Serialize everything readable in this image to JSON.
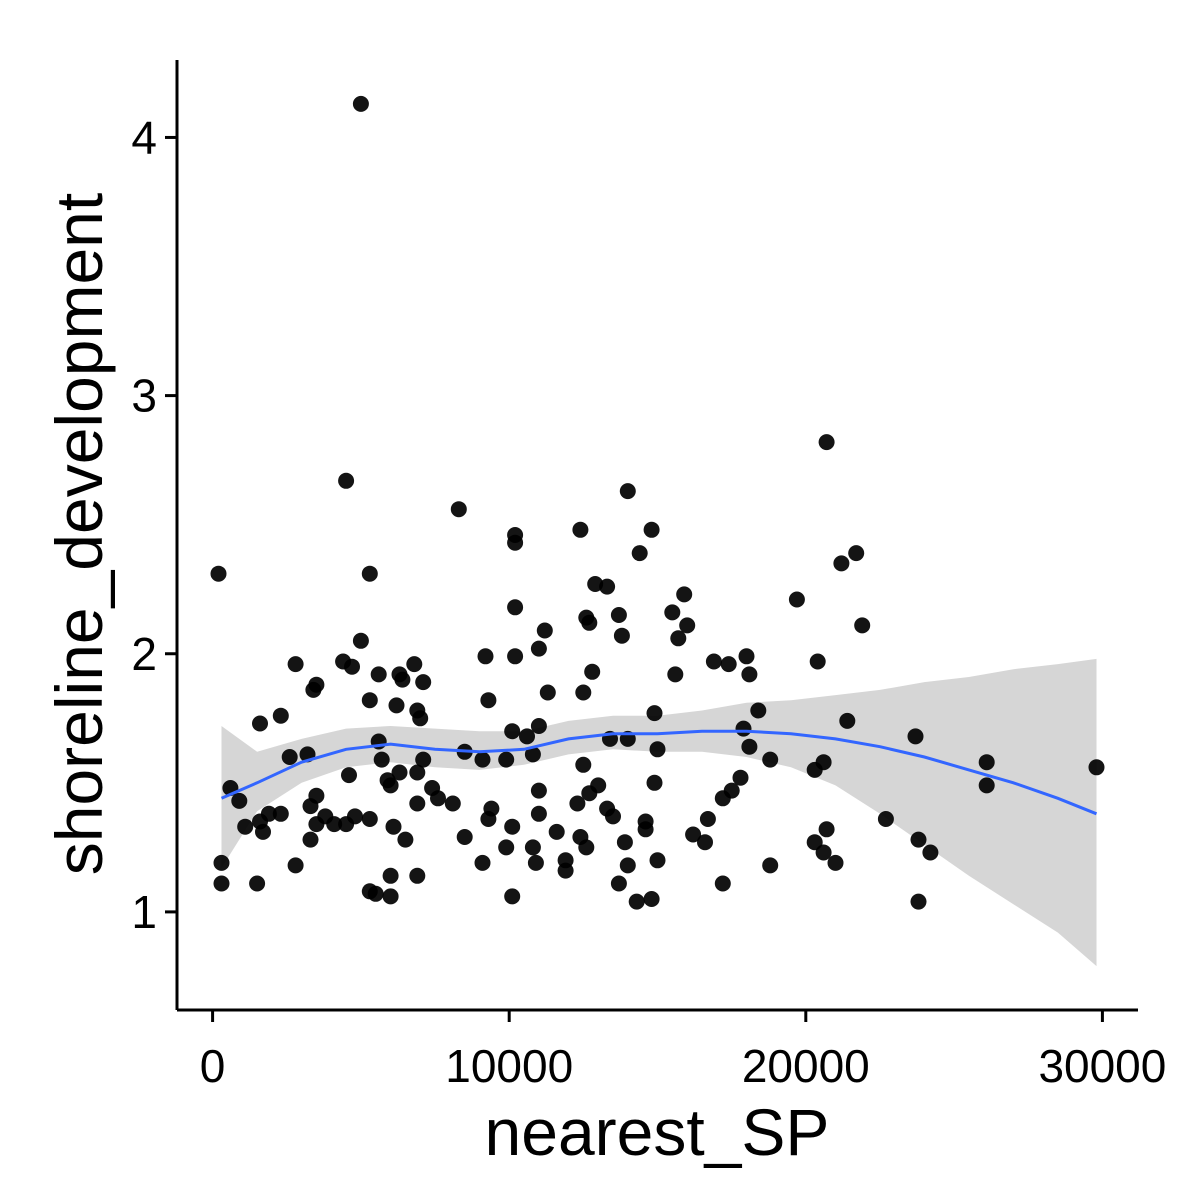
{
  "chart_data": {
    "type": "scatter",
    "xlabel": "nearest_SP",
    "ylabel": "shoreline_development",
    "xlim": [
      -1200,
      31200
    ],
    "ylim": [
      0.62,
      4.3
    ],
    "x_ticks": [
      0,
      10000,
      20000,
      30000
    ],
    "x_tick_labels": [
      "0",
      "10000",
      "20000",
      "30000"
    ],
    "y_ticks": [
      1,
      2,
      3,
      4
    ],
    "y_tick_labels": [
      "1",
      "2",
      "3",
      "4"
    ],
    "grid": false,
    "legend": "none",
    "point_color": "#000000",
    "smooth_color": "#3366FF",
    "band_color": "#d6d6d6",
    "points": [
      [
        5000,
        4.13
      ],
      [
        4500,
        2.67
      ],
      [
        20700,
        2.82
      ],
      [
        14000,
        2.63
      ],
      [
        8300,
        2.56
      ],
      [
        12400,
        2.48
      ],
      [
        14800,
        2.48
      ],
      [
        10200,
        2.46
      ],
      [
        10200,
        2.43
      ],
      [
        14400,
        2.39
      ],
      [
        21700,
        2.39
      ],
      [
        21200,
        2.35
      ],
      [
        200,
        2.31
      ],
      [
        5300,
        2.31
      ],
      [
        12900,
        2.27
      ],
      [
        13300,
        2.26
      ],
      [
        15900,
        2.23
      ],
      [
        19700,
        2.21
      ],
      [
        10200,
        2.18
      ],
      [
        15500,
        2.16
      ],
      [
        13700,
        2.15
      ],
      [
        12600,
        2.14
      ],
      [
        12700,
        2.12
      ],
      [
        16000,
        2.11
      ],
      [
        21900,
        2.11
      ],
      [
        11200,
        2.09
      ],
      [
        13800,
        2.07
      ],
      [
        15700,
        2.06
      ],
      [
        5000,
        2.05
      ],
      [
        11000,
        2.02
      ],
      [
        10200,
        1.99
      ],
      [
        9200,
        1.99
      ],
      [
        18000,
        1.99
      ],
      [
        4400,
        1.97
      ],
      [
        4700,
        1.95
      ],
      [
        20400,
        1.97
      ],
      [
        2800,
        1.96
      ],
      [
        6800,
        1.96
      ],
      [
        16900,
        1.97
      ],
      [
        17400,
        1.96
      ],
      [
        6300,
        1.92
      ],
      [
        5600,
        1.92
      ],
      [
        12800,
        1.93
      ],
      [
        15600,
        1.92
      ],
      [
        18100,
        1.92
      ],
      [
        6400,
        1.9
      ],
      [
        7100,
        1.89
      ],
      [
        3500,
        1.88
      ],
      [
        3400,
        1.86
      ],
      [
        11300,
        1.85
      ],
      [
        12500,
        1.85
      ],
      [
        5300,
        1.82
      ],
      [
        9300,
        1.82
      ],
      [
        6200,
        1.8
      ],
      [
        6900,
        1.78
      ],
      [
        14900,
        1.77
      ],
      [
        18400,
        1.78
      ],
      [
        2300,
        1.76
      ],
      [
        7000,
        1.75
      ],
      [
        1600,
        1.73
      ],
      [
        21400,
        1.74
      ],
      [
        10100,
        1.7
      ],
      [
        11000,
        1.72
      ],
      [
        17900,
        1.71
      ],
      [
        10600,
        1.68
      ],
      [
        23700,
        1.68
      ],
      [
        13400,
        1.67
      ],
      [
        14000,
        1.67
      ],
      [
        5600,
        1.66
      ],
      [
        3200,
        1.61
      ],
      [
        2600,
        1.6
      ],
      [
        8500,
        1.62
      ],
      [
        10800,
        1.61
      ],
      [
        15000,
        1.63
      ],
      [
        18100,
        1.64
      ],
      [
        9100,
        1.59
      ],
      [
        9900,
        1.59
      ],
      [
        12500,
        1.57
      ],
      [
        18800,
        1.59
      ],
      [
        20600,
        1.58
      ],
      [
        5700,
        1.59
      ],
      [
        7100,
        1.59
      ],
      [
        20300,
        1.55
      ],
      [
        26100,
        1.58
      ],
      [
        29800,
        1.56
      ],
      [
        6300,
        1.54
      ],
      [
        6900,
        1.54
      ],
      [
        5900,
        1.51
      ],
      [
        4600,
        1.53
      ],
      [
        14900,
        1.5
      ],
      [
        17800,
        1.52
      ],
      [
        13000,
        1.49
      ],
      [
        26100,
        1.49
      ],
      [
        600,
        1.48
      ],
      [
        6000,
        1.49
      ],
      [
        7400,
        1.48
      ],
      [
        11000,
        1.47
      ],
      [
        17500,
        1.47
      ],
      [
        12700,
        1.46
      ],
      [
        3500,
        1.45
      ],
      [
        7600,
        1.44
      ],
      [
        17200,
        1.44
      ],
      [
        900,
        1.43
      ],
      [
        12300,
        1.42
      ],
      [
        6900,
        1.42
      ],
      [
        3300,
        1.41
      ],
      [
        8100,
        1.42
      ],
      [
        9400,
        1.4
      ],
      [
        13300,
        1.4
      ],
      [
        1900,
        1.38
      ],
      [
        2300,
        1.38
      ],
      [
        11000,
        1.38
      ],
      [
        13500,
        1.37
      ],
      [
        3800,
        1.37
      ],
      [
        4800,
        1.37
      ],
      [
        5300,
        1.36
      ],
      [
        9300,
        1.36
      ],
      [
        16700,
        1.36
      ],
      [
        22700,
        1.36
      ],
      [
        1600,
        1.35
      ],
      [
        3500,
        1.34
      ],
      [
        4100,
        1.34
      ],
      [
        4500,
        1.34
      ],
      [
        14600,
        1.35
      ],
      [
        6100,
        1.33
      ],
      [
        1100,
        1.33
      ],
      [
        10100,
        1.33
      ],
      [
        14600,
        1.32
      ],
      [
        20700,
        1.32
      ],
      [
        1700,
        1.31
      ],
      [
        11600,
        1.31
      ],
      [
        16200,
        1.3
      ],
      [
        8500,
        1.29
      ],
      [
        12400,
        1.29
      ],
      [
        3300,
        1.28
      ],
      [
        6500,
        1.28
      ],
      [
        13900,
        1.27
      ],
      [
        16600,
        1.27
      ],
      [
        20300,
        1.27
      ],
      [
        23800,
        1.28
      ],
      [
        9900,
        1.25
      ],
      [
        10800,
        1.25
      ],
      [
        12600,
        1.25
      ],
      [
        20600,
        1.23
      ],
      [
        24200,
        1.23
      ],
      [
        300,
        1.19
      ],
      [
        9100,
        1.19
      ],
      [
        15000,
        1.2
      ],
      [
        21000,
        1.19
      ],
      [
        2800,
        1.18
      ],
      [
        10900,
        1.19
      ],
      [
        11900,
        1.2
      ],
      [
        14000,
        1.18
      ],
      [
        18800,
        1.18
      ],
      [
        11900,
        1.16
      ],
      [
        6000,
        1.14
      ],
      [
        6900,
        1.14
      ],
      [
        300,
        1.11
      ],
      [
        1500,
        1.11
      ],
      [
        13700,
        1.11
      ],
      [
        17200,
        1.11
      ],
      [
        5300,
        1.08
      ],
      [
        5500,
        1.07
      ],
      [
        6000,
        1.06
      ],
      [
        10100,
        1.06
      ],
      [
        14800,
        1.05
      ],
      [
        14300,
        1.04
      ],
      [
        23800,
        1.04
      ]
    ],
    "smooth_x": [
      300,
      1500,
      3000,
      4500,
      6000,
      7500,
      9000,
      10500,
      12000,
      13500,
      15000,
      16500,
      18000,
      19500,
      21000,
      22500,
      24000,
      25500,
      27000,
      28500,
      29800
    ],
    "smooth_y": [
      1.44,
      1.5,
      1.58,
      1.63,
      1.65,
      1.63,
      1.62,
      1.63,
      1.67,
      1.69,
      1.69,
      1.7,
      1.7,
      1.69,
      1.67,
      1.64,
      1.6,
      1.55,
      1.5,
      1.44,
      1.38
    ],
    "band_lower": [
      1.17,
      1.39,
      1.5,
      1.56,
      1.58,
      1.56,
      1.55,
      1.57,
      1.61,
      1.63,
      1.62,
      1.62,
      1.6,
      1.56,
      1.49,
      1.38,
      1.26,
      1.14,
      1.03,
      0.92,
      0.79
    ],
    "band_upper": [
      1.72,
      1.62,
      1.67,
      1.71,
      1.72,
      1.71,
      1.7,
      1.7,
      1.74,
      1.76,
      1.76,
      1.78,
      1.81,
      1.82,
      1.84,
      1.86,
      1.89,
      1.91,
      1.94,
      1.96,
      1.98
    ]
  }
}
